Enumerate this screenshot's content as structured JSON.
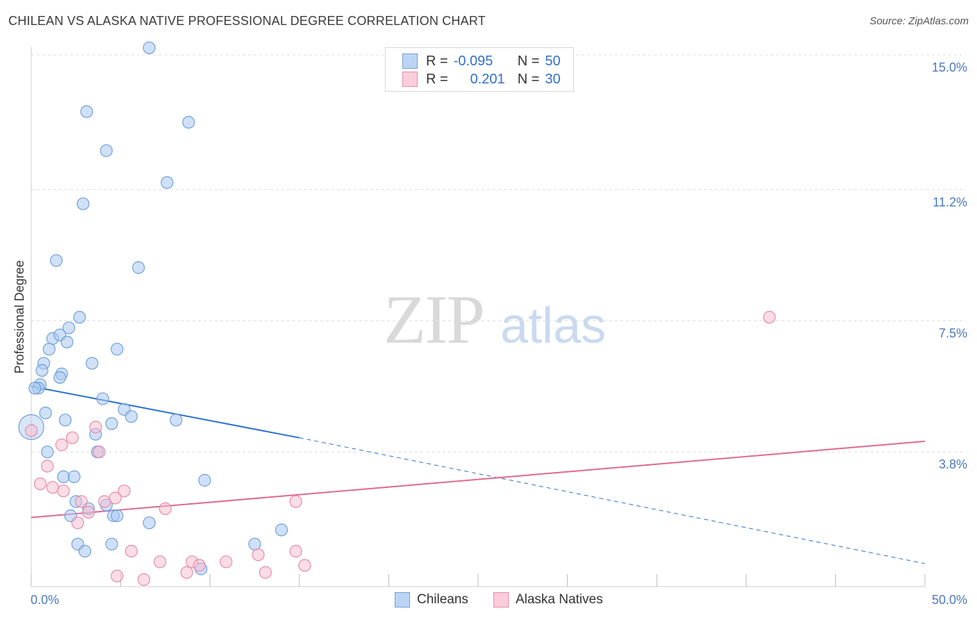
{
  "title": "CHILEAN VS ALASKA NATIVE PROFESSIONAL DEGREE CORRELATION CHART",
  "source": "Source: ZipAtlas.com",
  "watermark": {
    "zip": "ZIP",
    "atlas": "atlas"
  },
  "legend": {
    "rows": [
      {
        "r_label": "R =",
        "r_value": "-0.095",
        "n_label": "N =",
        "n_value": "50"
      },
      {
        "r_label": "R =",
        "r_value": "0.201",
        "n_label": "N =",
        "n_value": "30"
      }
    ]
  },
  "colors": {
    "chileans_fill": "#a9c8f0",
    "chileans_stroke": "#6e9fdc",
    "chileans_line": "#2b70d0",
    "alaska_fill": "#f6bccd",
    "alaska_stroke": "#e98aa7",
    "alaska_line": "#e06890",
    "grid": "#dcdcdc",
    "tick_text": "#4a78c2"
  },
  "chart_data": {
    "type": "scatter",
    "title": "CHILEAN VS ALASKA NATIVE PROFESSIONAL DEGREE CORRELATION CHART",
    "xlabel": "",
    "ylabel": "Professional Degree",
    "xlim": [
      0,
      50
    ],
    "ylim": [
      0,
      15.5
    ],
    "x_tick_labels": [
      "0.0%",
      "50.0%"
    ],
    "y_ticks": [
      3.8,
      7.5,
      11.2,
      15.0
    ],
    "y_tick_labels": [
      "3.8%",
      "7.5%",
      "11.2%",
      "15.0%"
    ],
    "legend_position": "top-center",
    "series": [
      {
        "name": "Chileans",
        "r": -0.095,
        "n": 50,
        "trend": {
          "x0": 0,
          "y0": 5.65,
          "x1": 15,
          "y1": 4.2,
          "dash_to_x": 50,
          "dash_to_y": 0.65
        },
        "points": [
          [
            6.6,
            15.2
          ],
          [
            3.1,
            13.4
          ],
          [
            4.2,
            12.3
          ],
          [
            8.8,
            13.1
          ],
          [
            7.6,
            11.4
          ],
          [
            2.9,
            10.8
          ],
          [
            1.4,
            9.2
          ],
          [
            6.0,
            9.0
          ],
          [
            2.7,
            7.6
          ],
          [
            1.2,
            7.0
          ],
          [
            1.6,
            7.1
          ],
          [
            2.1,
            7.3
          ],
          [
            2.0,
            6.9
          ],
          [
            1.0,
            6.7
          ],
          [
            0.7,
            6.3
          ],
          [
            0.6,
            6.1
          ],
          [
            1.7,
            6.0
          ],
          [
            3.4,
            6.3
          ],
          [
            4.8,
            6.7
          ],
          [
            0.5,
            5.7
          ],
          [
            0.4,
            5.6
          ],
          [
            0.2,
            5.6
          ],
          [
            1.6,
            5.9
          ],
          [
            4.0,
            5.3
          ],
          [
            0.8,
            4.9
          ],
          [
            1.9,
            4.7
          ],
          [
            5.2,
            5.0
          ],
          [
            5.6,
            4.8
          ],
          [
            4.5,
            4.6
          ],
          [
            8.1,
            4.7
          ],
          [
            3.6,
            4.3
          ],
          [
            0.9,
            3.8
          ],
          [
            3.7,
            3.8
          ],
          [
            1.8,
            3.1
          ],
          [
            2.4,
            3.1
          ],
          [
            9.7,
            3.0
          ],
          [
            2.5,
            2.4
          ],
          [
            3.2,
            2.2
          ],
          [
            4.2,
            2.3
          ],
          [
            4.6,
            2.0
          ],
          [
            4.8,
            2.0
          ],
          [
            2.2,
            2.0
          ],
          [
            6.6,
            1.8
          ],
          [
            14.0,
            1.6
          ],
          [
            2.6,
            1.2
          ],
          [
            3.0,
            1.0
          ],
          [
            4.5,
            1.2
          ],
          [
            12.5,
            1.2
          ],
          [
            9.5,
            0.5
          ],
          [
            0.0,
            4.5
          ]
        ]
      },
      {
        "name": "Alaska Natives",
        "r": 0.201,
        "n": 30,
        "trend": {
          "x0": 0,
          "y0": 1.95,
          "x1": 50,
          "y1": 4.1
        },
        "points": [
          [
            41.3,
            7.6
          ],
          [
            0.0,
            4.4
          ],
          [
            3.6,
            4.5
          ],
          [
            2.3,
            4.2
          ],
          [
            1.7,
            4.0
          ],
          [
            3.8,
            3.8
          ],
          [
            0.9,
            3.4
          ],
          [
            0.5,
            2.9
          ],
          [
            1.2,
            2.8
          ],
          [
            1.8,
            2.7
          ],
          [
            5.2,
            2.7
          ],
          [
            4.7,
            2.5
          ],
          [
            2.8,
            2.4
          ],
          [
            4.1,
            2.4
          ],
          [
            3.2,
            2.1
          ],
          [
            7.5,
            2.2
          ],
          [
            14.8,
            2.4
          ],
          [
            2.6,
            1.8
          ],
          [
            5.6,
            1.0
          ],
          [
            7.2,
            0.7
          ],
          [
            9.0,
            0.7
          ],
          [
            9.4,
            0.6
          ],
          [
            10.9,
            0.7
          ],
          [
            12.7,
            0.9
          ],
          [
            14.8,
            1.0
          ],
          [
            15.3,
            0.6
          ],
          [
            4.8,
            0.3
          ],
          [
            6.3,
            0.2
          ],
          [
            8.7,
            0.4
          ],
          [
            13.1,
            0.4
          ]
        ]
      }
    ]
  },
  "bottom_legend": [
    {
      "label": "Chileans"
    },
    {
      "label": "Alaska Natives"
    }
  ]
}
